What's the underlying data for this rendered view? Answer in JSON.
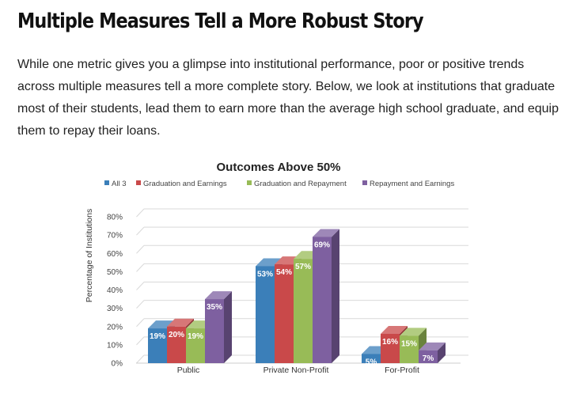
{
  "article": {
    "heading": "Multiple Measures Tell a More Robust Story",
    "intro": "While one metric gives you a glimpse into institutional performance, poor or positive trends across multiple measures tell a more complete story. Below, we look at institutions that graduate most of their students, lead them to earn more than the average high school graduate, and equip them to repay their loans."
  },
  "chart_data": {
    "type": "bar",
    "title": "Outcomes Above 50%",
    "ylabel": "Percentage of Institutions",
    "xlabel": "",
    "ylim": [
      0,
      80
    ],
    "yticks": [
      0,
      10,
      20,
      30,
      40,
      50,
      60,
      70,
      80
    ],
    "tick_suffix": "%",
    "grid": true,
    "legend_position": "top",
    "style": "3d-clustered",
    "categories": [
      "Public",
      "Private Non-Profit",
      "For-Profit"
    ],
    "series": [
      {
        "name": "All 3",
        "values": [
          19,
          53,
          5
        ],
        "color": "#3b7fb9"
      },
      {
        "name": "Graduation and Earnings",
        "values": [
          20,
          54,
          16
        ],
        "color": "#c9494a"
      },
      {
        "name": "Graduation and Repayment",
        "values": [
          19,
          57,
          15
        ],
        "color": "#98bb57"
      },
      {
        "name": "Repayment and Earnings",
        "values": [
          35,
          69,
          7
        ],
        "color": "#7e60a0"
      }
    ],
    "data_labels": [
      [
        "19%",
        "20%",
        "19%",
        "35%"
      ],
      [
        "53%",
        "54%",
        "57%",
        "69%"
      ],
      [
        "5%",
        "16%",
        "15%",
        "7%"
      ]
    ]
  }
}
